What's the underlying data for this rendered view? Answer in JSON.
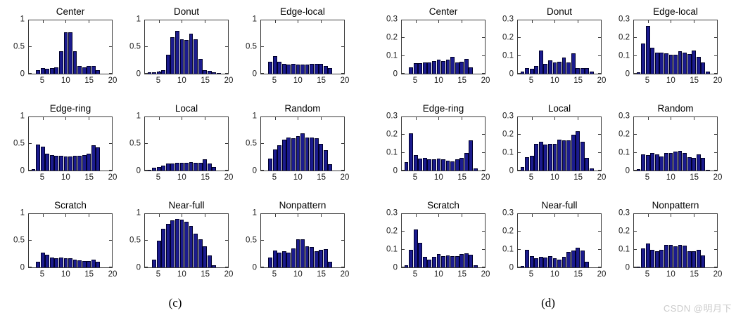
{
  "watermark": "CSDN @明月下",
  "chart_data": [
    {
      "panel": "(c)",
      "type": "bar",
      "title": "",
      "xlabel": "",
      "ylabel": "",
      "grid": false,
      "legend": null,
      "xlim": [
        2,
        20
      ],
      "xticks": [
        5,
        10,
        15,
        20
      ],
      "ylim": [
        0,
        1
      ],
      "yticks": [
        0,
        0.5,
        1
      ],
      "ytick_labels": [
        "0",
        "0.5",
        "1"
      ],
      "bar_color": "#1b1b8e",
      "bar_edge": "#00002a",
      "histograms": [
        {
          "title": "Center",
          "x_start": 4,
          "values": [
            0.07,
            0.1,
            0.09,
            0.11,
            0.12,
            0.42,
            0.77,
            0.78,
            0.42,
            0.14,
            0.12,
            0.14,
            0.14,
            0.07
          ]
        },
        {
          "title": "Donut",
          "x_start": 3,
          "values": [
            0.02,
            0.03,
            0.04,
            0.07,
            0.35,
            0.69,
            0.8,
            0.64,
            0.63,
            0.75,
            0.65,
            0.28,
            0.06,
            0.05,
            0.02,
            0.01
          ]
        },
        {
          "title": "Edge-local",
          "x_start": 4,
          "values": [
            0.22,
            0.33,
            0.22,
            0.18,
            0.17,
            0.18,
            0.17,
            0.17,
            0.17,
            0.19,
            0.19,
            0.19,
            0.14,
            0.1
          ]
        },
        {
          "title": "Edge-ring",
          "x_start": 3,
          "values": [
            0.03,
            0.49,
            0.45,
            0.32,
            0.29,
            0.28,
            0.28,
            0.26,
            0.26,
            0.27,
            0.27,
            0.29,
            0.32,
            0.48,
            0.43
          ]
        },
        {
          "title": "Local",
          "x_start": 3,
          "values": [
            0.01,
            0.05,
            0.06,
            0.09,
            0.13,
            0.13,
            0.14,
            0.15,
            0.15,
            0.16,
            0.14,
            0.14,
            0.21,
            0.13,
            0.06
          ]
        },
        {
          "title": "Random",
          "x_start": 4,
          "values": [
            0.22,
            0.4,
            0.47,
            0.58,
            0.62,
            0.6,
            0.65,
            0.7,
            0.62,
            0.62,
            0.6,
            0.5,
            0.38,
            0.12
          ]
        },
        {
          "title": "Scratch",
          "x_start": 4,
          "values": [
            0.1,
            0.27,
            0.24,
            0.18,
            0.17,
            0.18,
            0.17,
            0.17,
            0.15,
            0.13,
            0.12,
            0.12,
            0.14,
            0.1
          ]
        },
        {
          "title": "Near-full",
          "x_start": 4,
          "values": [
            0.15,
            0.5,
            0.72,
            0.82,
            0.88,
            0.91,
            0.9,
            0.85,
            0.78,
            0.63,
            0.52,
            0.4,
            0.22,
            0.04
          ]
        },
        {
          "title": "Nonpattern",
          "x_start": 4,
          "values": [
            0.18,
            0.32,
            0.28,
            0.3,
            0.28,
            0.35,
            0.53,
            0.52,
            0.4,
            0.38,
            0.3,
            0.33,
            0.34,
            0.1
          ]
        }
      ]
    },
    {
      "panel": "(d)",
      "type": "bar",
      "title": "",
      "xlabel": "",
      "ylabel": "",
      "grid": false,
      "legend": null,
      "xlim": [
        2,
        20
      ],
      "xticks": [
        5,
        10,
        15,
        20
      ],
      "ylim": [
        0,
        0.3
      ],
      "yticks": [
        0,
        0.1,
        0.2,
        0.3
      ],
      "ytick_labels": [
        "0",
        "0.1",
        "0.2",
        "0.3"
      ],
      "bar_color": "#1b1b8e",
      "bar_edge": "#00002a",
      "histograms": [
        {
          "title": "Center",
          "x_start": 4,
          "values": [
            0.035,
            0.06,
            0.06,
            0.062,
            0.065,
            0.07,
            0.08,
            0.07,
            0.078,
            0.095,
            0.065,
            0.068,
            0.083,
            0.035
          ]
        },
        {
          "title": "Donut",
          "x_start": 3,
          "values": [
            0.01,
            0.03,
            0.028,
            0.045,
            0.13,
            0.055,
            0.075,
            0.065,
            0.068,
            0.09,
            0.063,
            0.115,
            0.03,
            0.033,
            0.03,
            0.012
          ]
        },
        {
          "title": "Edge-local",
          "x_start": 3,
          "values": [
            0.008,
            0.17,
            0.27,
            0.148,
            0.12,
            0.12,
            0.115,
            0.105,
            0.105,
            0.128,
            0.12,
            0.112,
            0.132,
            0.093,
            0.065,
            0.01
          ]
        },
        {
          "title": "Edge-ring",
          "x_start": 3,
          "values": [
            0.048,
            0.21,
            0.085,
            0.068,
            0.072,
            0.062,
            0.063,
            0.068,
            0.065,
            0.055,
            0.05,
            0.063,
            0.07,
            0.098,
            0.17,
            0.012
          ]
        },
        {
          "title": "Local",
          "x_start": 3,
          "values": [
            0.02,
            0.075,
            0.082,
            0.15,
            0.16,
            0.148,
            0.15,
            0.152,
            0.172,
            0.17,
            0.17,
            0.2,
            0.222,
            0.16,
            0.072,
            0.012
          ]
        },
        {
          "title": "Random",
          "x_start": 3,
          "values": [
            0.008,
            0.09,
            0.085,
            0.097,
            0.09,
            0.08,
            0.098,
            0.1,
            0.105,
            0.11,
            0.1,
            0.075,
            0.07,
            0.09,
            0.07,
            0.005
          ]
        },
        {
          "title": "Scratch",
          "x_start": 3,
          "values": [
            0.01,
            0.098,
            0.215,
            0.14,
            0.058,
            0.045,
            0.06,
            0.075,
            0.062,
            0.068,
            0.062,
            0.062,
            0.075,
            0.08,
            0.072,
            0.012
          ]
        },
        {
          "title": "Near-full",
          "x_start": 3,
          "values": [
            0.008,
            0.1,
            0.065,
            0.05,
            0.06,
            0.055,
            0.062,
            0.052,
            0.042,
            0.058,
            0.085,
            0.095,
            0.11,
            0.095,
            0.03
          ]
        },
        {
          "title": "Nonpattern",
          "x_start": 3,
          "values": [
            0.005,
            0.105,
            0.135,
            0.1,
            0.09,
            0.097,
            0.127,
            0.125,
            0.12,
            0.128,
            0.122,
            0.09,
            0.092,
            0.097,
            0.068
          ]
        }
      ]
    }
  ]
}
